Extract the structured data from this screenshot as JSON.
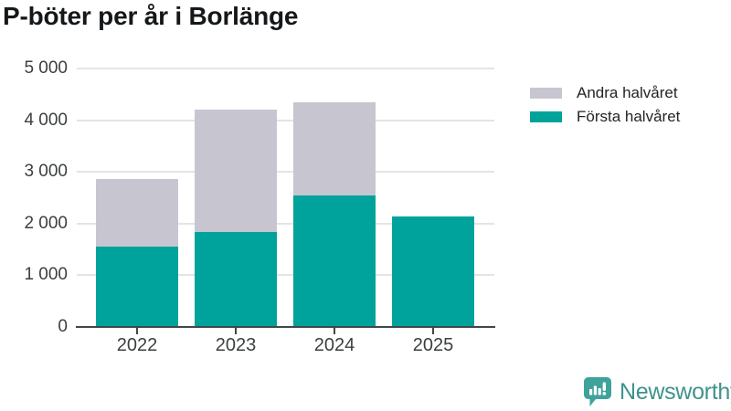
{
  "title": "P-böter per år i Borlänge",
  "chart_data": {
    "type": "bar",
    "stacked": true,
    "title": "P-böter per år i Borlänge",
    "categories": [
      "2022",
      "2023",
      "2024",
      "2025"
    ],
    "series": [
      {
        "name": "Första halvåret",
        "color": "#00a39b",
        "values": [
          1550,
          1830,
          2550,
          2140
        ]
      },
      {
        "name": "Andra halvåret",
        "color": "#c7c6d0",
        "values": [
          1300,
          2370,
          1810,
          0
        ]
      }
    ],
    "totals": [
      2850,
      4200,
      4360,
      2140
    ],
    "xlabel": "",
    "ylabel": "",
    "ylim": [
      0,
      5000
    ],
    "yticks": [
      0,
      1000,
      2000,
      3000,
      4000,
      5000
    ],
    "ytick_labels": [
      "0",
      "1 000",
      "2 000",
      "3 000",
      "4 000",
      "5 000"
    ],
    "grid": "horizontal",
    "legend_position": "top-right",
    "legend_order": [
      "Andra halvåret",
      "Första halvåret"
    ]
  },
  "colors": {
    "first_half": "#00a39b",
    "second_half": "#c7c6d0",
    "gridline": "#e4e4e6",
    "axis": "#424649",
    "brand": "#3e938c"
  },
  "branding": {
    "label": "Newsworthy",
    "icon": "newsworthy-speech-bubble-bar-chart-icon"
  }
}
